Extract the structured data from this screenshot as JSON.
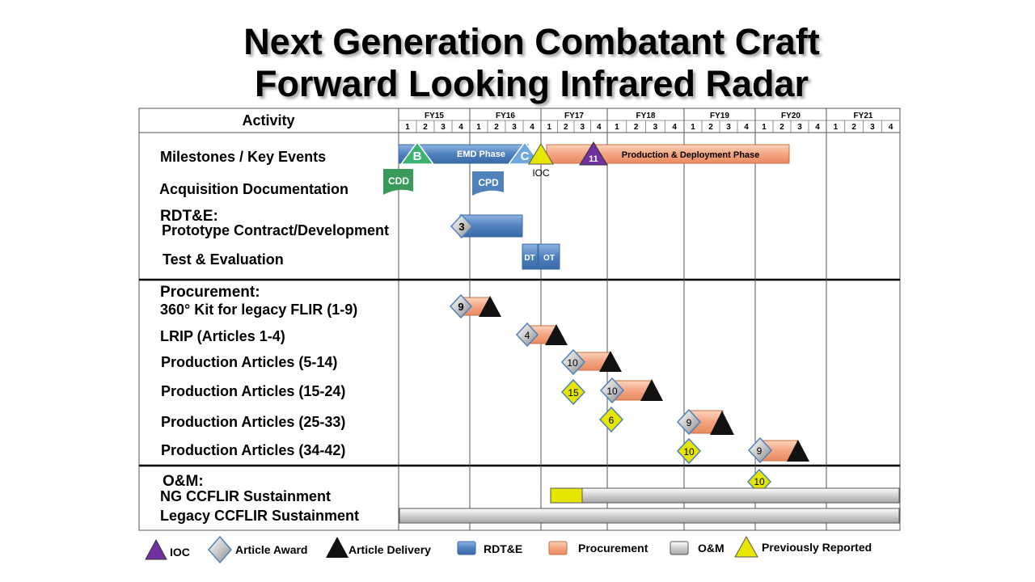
{
  "title": {
    "line1": "Next Generation Combatant Craft",
    "line2": "Forward Looking Infrared Radar"
  },
  "header": {
    "activity": "Activity",
    "fiscal_years": [
      "FY15",
      "FY16",
      "FY17",
      "FY18",
      "FY19",
      "FY20",
      "FY21"
    ],
    "quarters": [
      "1",
      "2",
      "3",
      "4"
    ]
  },
  "rows": {
    "milestones": "Milestones / Key Events",
    "acq_docs": "Acquisition Documentation",
    "rdte": "RDT&E:",
    "prototype": "Prototype Contract/Development",
    "test_eval": "Test & Evaluation",
    "procurement": "Procurement:",
    "kit360": "360° Kit for legacy FLIR (1-9)",
    "lrip": "LRIP (Articles 1-4)",
    "prod_5_14": "Production Articles (5-14)",
    "prod_15_24": "Production Articles (15-24)",
    "prod_25_33": "Production Articles (25-33)",
    "prod_34_42": "Production Articles (34-42)",
    "om": "O&M:",
    "ng_sustain": "NG CCFLIR Sustainment",
    "legacy_sustain": "Legacy CCFLIR Sustainment"
  },
  "chart_text": {
    "emd_phase": "EMD Phase",
    "prod_deploy": "Production & Deployment Phase",
    "milestone_b": "B",
    "milestone_c": "C",
    "ioc": "IOC",
    "ioc_number": "11",
    "cdd": "CDD",
    "cpd": "CPD",
    "dt": "DT",
    "ot": "OT",
    "awards": {
      "prototype": "3",
      "kit360": "9",
      "lrip": "4",
      "prod_5_14": "10",
      "prod_15_24": "10",
      "prod_15_24_prev": "15",
      "prod_25_33": "9",
      "prod_25_33_prev": "6",
      "prod_34_42": "9",
      "prod_34_42_prev": "10",
      "om_prev": "10"
    }
  },
  "legend": {
    "ioc": "IOC",
    "article_award": "Article Award",
    "article_delivery": "Article Delivery",
    "rdte": "RDT&E",
    "procurement": "Procurement",
    "om": "O&M",
    "previously_reported": "Previously Reported"
  },
  "colors": {
    "rdte": "#4f81bd",
    "procurement": "#f4a582",
    "om": "#d0d0d0",
    "previously_reported": "#e6e600",
    "ioc": "#7030a0",
    "milestone_b": "#3cb371",
    "milestone_c": "#6fa8dc",
    "doc_cdd": "#3a9a5a",
    "doc_cpd": "#4f81bd"
  }
}
